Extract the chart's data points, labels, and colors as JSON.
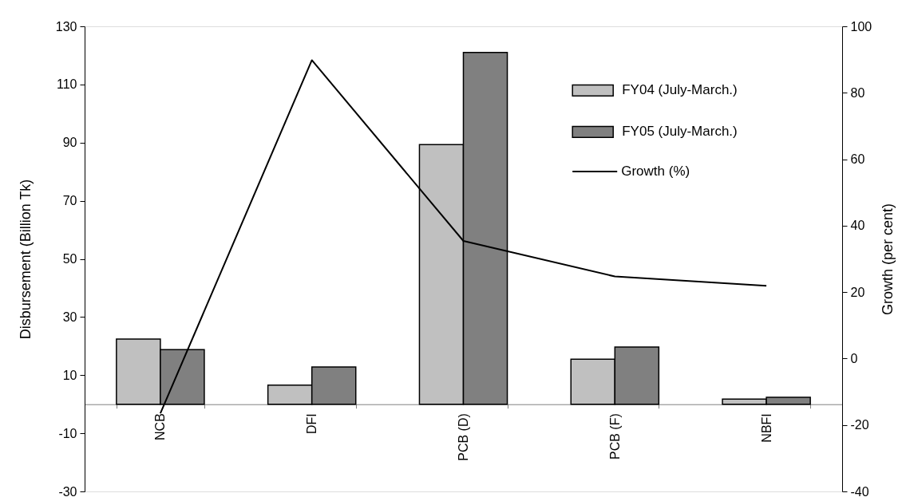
{
  "chart_data": {
    "type": "bar",
    "categories": [
      "NCB",
      "DFI",
      "PCB (D)",
      "PCB (F)",
      "NBFI"
    ],
    "series": [
      {
        "name": "FY04 (July-March.)",
        "color": "#c0c0c0",
        "values": [
          22.4,
          6.6,
          89.3,
          15.5,
          1.8
        ]
      },
      {
        "name": "FY05 (July-March.)",
        "color": "#808080",
        "values": [
          18.8,
          12.8,
          121.0,
          19.7,
          2.4
        ]
      },
      {
        "name": "Growth (%)",
        "type": "line",
        "axis": "y2",
        "color": "#000000",
        "values": [
          -16.5,
          89.8,
          35.4,
          24.7,
          21.9
        ]
      }
    ],
    "ylabel": "Disbursement (Billion Tk)",
    "y2label": "Growth (per cent)",
    "ylim": [
      -30,
      130
    ],
    "yticks": [
      -30,
      -10,
      10,
      30,
      50,
      70,
      90,
      110,
      130
    ],
    "y2lim": [
      -40,
      100
    ],
    "y2ticks": [
      -40,
      -20,
      0,
      20,
      40,
      60,
      80,
      100
    ],
    "grid": false,
    "legend": "top right",
    "marker": "none",
    "line_style": "solid"
  }
}
